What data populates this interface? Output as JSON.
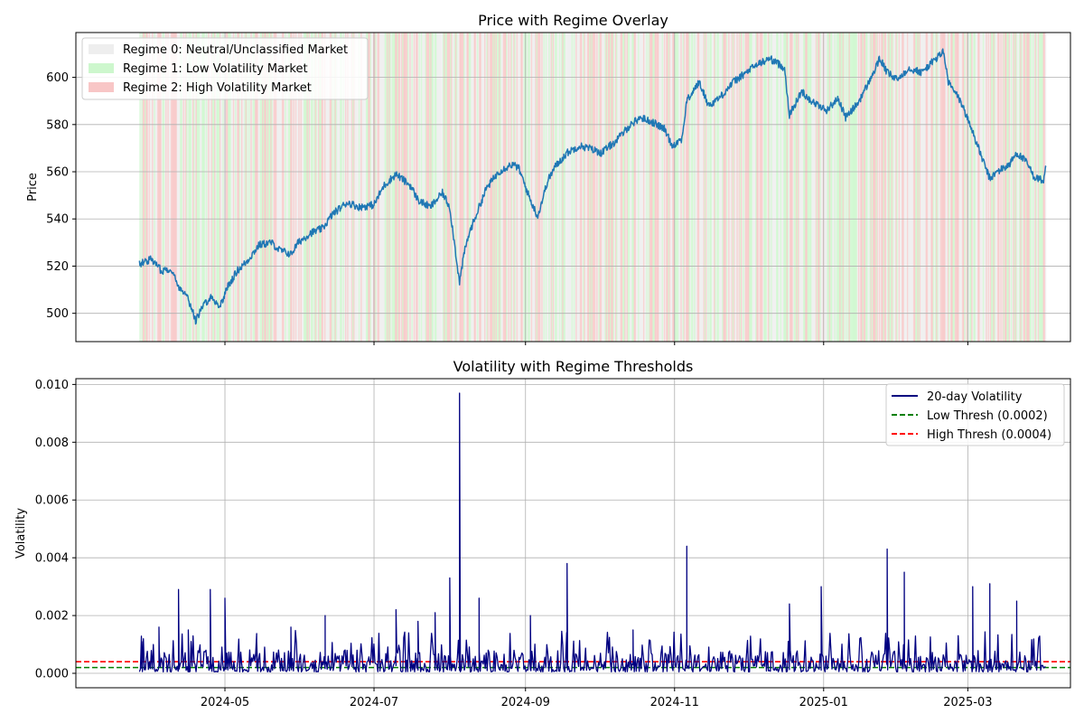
{
  "chart_data": [
    {
      "type": "line",
      "title": "Price with Regime Overlay",
      "xlabel": "",
      "ylabel": "Price",
      "xlim": [
        "2024-03-01",
        "2025-04-12"
      ],
      "ylim": [
        488,
        619
      ],
      "yticks": [
        500,
        520,
        540,
        560,
        580,
        600
      ],
      "grid": true,
      "legend_position": "top-left",
      "regime_legend": [
        {
          "label": "Regime 0: Neutral/Unclassified Market",
          "color": "#d9d9d9"
        },
        {
          "label": "Regime 1: Low Volatility Market",
          "color": "#90ee90"
        },
        {
          "label": "Regime 2: High Volatility Market",
          "color": "#f08080"
        }
      ],
      "price_color": "#1f77b4",
      "price_series": {
        "x": [
          "2024-03-27",
          "2024-04-01",
          "2024-04-05",
          "2024-04-09",
          "2024-04-12",
          "2024-04-15",
          "2024-04-18",
          "2024-04-19",
          "2024-04-22",
          "2024-04-25",
          "2024-04-29",
          "2024-05-02",
          "2024-05-06",
          "2024-05-10",
          "2024-05-15",
          "2024-05-20",
          "2024-05-23",
          "2024-05-28",
          "2024-05-31",
          "2024-06-05",
          "2024-06-10",
          "2024-06-14",
          "2024-06-20",
          "2024-06-25",
          "2024-07-01",
          "2024-07-05",
          "2024-07-10",
          "2024-07-16",
          "2024-07-19",
          "2024-07-24",
          "2024-07-29",
          "2024-08-01",
          "2024-08-05",
          "2024-08-07",
          "2024-08-09",
          "2024-08-13",
          "2024-08-16",
          "2024-08-21",
          "2024-08-26",
          "2024-08-29",
          "2024-09-03",
          "2024-09-06",
          "2024-09-10",
          "2024-09-13",
          "2024-09-18",
          "2024-09-23",
          "2024-09-27",
          "2024-10-02",
          "2024-10-08",
          "2024-10-14",
          "2024-10-18",
          "2024-10-23",
          "2024-10-28",
          "2024-10-31",
          "2024-11-04",
          "2024-11-06",
          "2024-11-11",
          "2024-11-15",
          "2024-11-20",
          "2024-11-25",
          "2024-11-29",
          "2024-12-04",
          "2024-12-10",
          "2024-12-16",
          "2024-12-18",
          "2024-12-23",
          "2024-12-27",
          "2025-01-02",
          "2025-01-07",
          "2025-01-10",
          "2025-01-15",
          "2025-01-21",
          "2025-01-24",
          "2025-01-27",
          "2025-01-31",
          "2025-02-05",
          "2025-02-10",
          "2025-02-14",
          "2025-02-19",
          "2025-02-21",
          "2025-02-26",
          "2025-03-03",
          "2025-03-06",
          "2025-03-10",
          "2025-03-13",
          "2025-03-18",
          "2025-03-21",
          "2025-03-25",
          "2025-03-28",
          "2025-04-01",
          "2025-04-02"
        ],
        "y": [
          521,
          523,
          518,
          519,
          511,
          509,
          500,
          497,
          503,
          507,
          503,
          511,
          518,
          522,
          529,
          530,
          527,
          525,
          530,
          534,
          536,
          542,
          547,
          545,
          546,
          554,
          559,
          554,
          548,
          545,
          551,
          545,
          513,
          526,
          534,
          545,
          553,
          560,
          563,
          562,
          548,
          541,
          556,
          562,
          568,
          571,
          570,
          568,
          573,
          580,
          583,
          581,
          578,
          571,
          574,
          590,
          598,
          588,
          592,
          598,
          601,
          605,
          608,
          604,
          584,
          594,
          590,
          586,
          591,
          583,
          589,
          601,
          608,
          602,
          599,
          604,
          602,
          606,
          611,
          598,
          590,
          577,
          568,
          557,
          560,
          563,
          568,
          564,
          558,
          556,
          562
        ]
      }
    },
    {
      "type": "line",
      "title": "Volatility with Regime Thresholds",
      "xlabel": "",
      "ylabel": "Volatility",
      "xlim": [
        "2024-03-01",
        "2025-04-12"
      ],
      "ylim": [
        -0.0005,
        0.0102
      ],
      "yticks": [
        0.0,
        0.002,
        0.004,
        0.006,
        0.008,
        0.01
      ],
      "ytick_labels": [
        "0.000",
        "0.002",
        "0.004",
        "0.006",
        "0.008",
        "0.010"
      ],
      "xticks": [
        "2024-05-01",
        "2024-07-01",
        "2024-09-01",
        "2024-11-01",
        "2025-01-01",
        "2025-03-01"
      ],
      "xtick_labels": [
        "2024-05",
        "2024-07",
        "2024-09",
        "2024-11",
        "2025-01",
        "2025-03"
      ],
      "grid": true,
      "legend_position": "top-right",
      "volatility_series": {
        "name": "20-day Volatility",
        "color": "#000080",
        "spikes": [
          {
            "date": "2024-03-28",
            "value": 0.0011
          },
          {
            "date": "2024-04-04",
            "value": 0.0016
          },
          {
            "date": "2024-04-12",
            "value": 0.0029
          },
          {
            "date": "2024-04-16",
            "value": 0.0015
          },
          {
            "date": "2024-04-25",
            "value": 0.0029
          },
          {
            "date": "2024-05-01",
            "value": 0.0026
          },
          {
            "date": "2024-05-14",
            "value": 0.0011
          },
          {
            "date": "2024-05-28",
            "value": 0.0016
          },
          {
            "date": "2024-06-11",
            "value": 0.002
          },
          {
            "date": "2024-07-10",
            "value": 0.0022
          },
          {
            "date": "2024-07-19",
            "value": 0.0018
          },
          {
            "date": "2024-07-26",
            "value": 0.0021
          },
          {
            "date": "2024-08-01",
            "value": 0.0033
          },
          {
            "date": "2024-08-05",
            "value": 0.0097
          },
          {
            "date": "2024-08-13",
            "value": 0.0026
          },
          {
            "date": "2024-09-03",
            "value": 0.002
          },
          {
            "date": "2024-09-18",
            "value": 0.0038
          },
          {
            "date": "2024-10-15",
            "value": 0.0015
          },
          {
            "date": "2024-11-06",
            "value": 0.0044
          },
          {
            "date": "2024-12-18",
            "value": 0.0024
          },
          {
            "date": "2024-12-31",
            "value": 0.003
          },
          {
            "date": "2025-01-27",
            "value": 0.0043
          },
          {
            "date": "2025-02-03",
            "value": 0.0035
          },
          {
            "date": "2025-03-03",
            "value": 0.003
          },
          {
            "date": "2025-03-10",
            "value": 0.0031
          },
          {
            "date": "2025-03-21",
            "value": 0.0025
          }
        ]
      },
      "thresholds": [
        {
          "name": "Low Thresh (0.0002)",
          "value": 0.0002,
          "color": "#008000"
        },
        {
          "name": "High Thresh (0.0004)",
          "value": 0.0004,
          "color": "#ff0000"
        }
      ]
    }
  ]
}
